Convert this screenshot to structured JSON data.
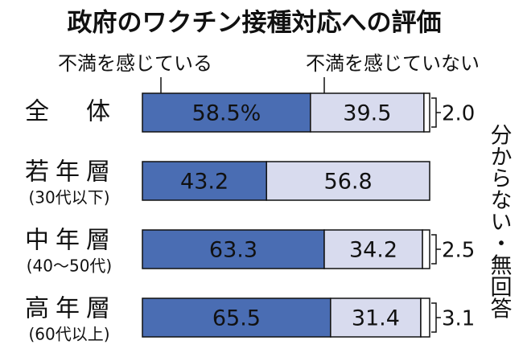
{
  "chart_data": {
    "type": "stacked-bar",
    "orientation": "horizontal",
    "title": "政府のワクチン接種対応への評価",
    "categories": [
      "全　体",
      "若年層",
      "中年層",
      "高年層"
    ],
    "category_notes": [
      null,
      "(30代以下)",
      "(40〜50代)",
      "(60代以上)"
    ],
    "xlim": [
      0,
      100
    ],
    "series": [
      {
        "name": "不満を感じている",
        "color": "#4a6db3",
        "text_color": "#ffffff",
        "values": [
          58.5,
          43.2,
          63.3,
          65.5
        ],
        "value_labels": [
          "58.5%",
          "43.2",
          "63.3",
          "65.5"
        ]
      },
      {
        "name": "不満を感じていない",
        "color": "#d8dbee",
        "text_color": "#111111",
        "values": [
          39.5,
          56.8,
          34.2,
          31.4
        ]
      },
      {
        "name": "分からない・無回答",
        "color": "#ffffff",
        "text_color": "#111111",
        "values": [
          2.0,
          null,
          2.5,
          3.1
        ],
        "value_labels": [
          "2.0",
          null,
          "2.5",
          "3.1"
        ]
      }
    ]
  }
}
